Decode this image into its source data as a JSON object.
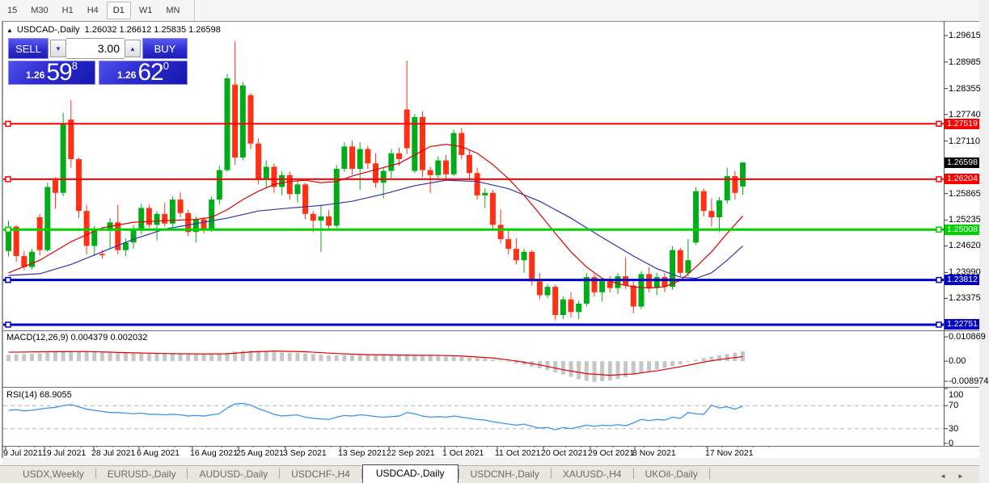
{
  "toolbar": {
    "timeframes": [
      {
        "label": "15",
        "active": false
      },
      {
        "label": "M30",
        "active": false
      },
      {
        "label": "H1",
        "active": false
      },
      {
        "label": "H4",
        "active": false
      },
      {
        "label": "D1",
        "active": true
      },
      {
        "label": "W1",
        "active": false
      },
      {
        "label": "MN",
        "active": false
      }
    ]
  },
  "window": {
    "title_symbol": "USDCAD-,Daily",
    "title_ohlc": "1.26032 1.26612 1.25835 1.26598",
    "collapse_icon": "▲"
  },
  "trade_panel": {
    "sell_label": "SELL",
    "buy_label": "BUY",
    "volume": "3.00",
    "down_icon": "▼",
    "up_icon": "▲",
    "sell_price_prefix": "1.26",
    "sell_price_big": "59",
    "sell_price_sup": "8",
    "buy_price_prefix": "1.26",
    "buy_price_big": "62",
    "buy_price_sup": "0"
  },
  "chart_data": {
    "type": "candlestick",
    "symbol": "USDCAD",
    "timeframe": "Daily",
    "ohlc_current": {
      "open": 1.26032,
      "high": 1.26612,
      "low": 1.25835,
      "close": 1.26598
    },
    "current_price_label": "1.26598",
    "price_range": {
      "top": 1.29883,
      "bottom": 1.22635
    },
    "y_ticks": [
      "1.29615",
      "1.28985",
      "1.28355",
      "1.27740",
      "1.27110",
      "1.25865",
      "1.25235",
      "1.24620",
      "1.23990",
      "1.23375"
    ],
    "x_labels": [
      {
        "label": "9 Jul 2021",
        "x": 4
      },
      {
        "label": "19 Jul 2021",
        "x": 52
      },
      {
        "label": "28 Jul 2021",
        "x": 113
      },
      {
        "label": "6 Aug 2021",
        "x": 169
      },
      {
        "label": "16 Aug 2021",
        "x": 235
      },
      {
        "label": "25 Aug 2021",
        "x": 292
      },
      {
        "label": "3 Sep 2021",
        "x": 350
      },
      {
        "label": "13 Sep 2021",
        "x": 418
      },
      {
        "label": "22 Sep 2021",
        "x": 478
      },
      {
        "label": "1 Oct 2021",
        "x": 547
      },
      {
        "label": "11 Oct 2021",
        "x": 612
      },
      {
        "label": "20 Oct 2021",
        "x": 669
      },
      {
        "label": "29 Oct 2021",
        "x": 727
      },
      {
        "label": "8 Nov 2021",
        "x": 782
      },
      {
        "label": "17 Nov 2021",
        "x": 872
      }
    ],
    "colors": {
      "bull": "#00ad19",
      "bear": "#ff3014",
      "ma_fast": "#dd0000",
      "ma_slow": "#3333aa",
      "hist": "#c6c6c6",
      "rsi": "#3a96ee"
    },
    "hlines": [
      {
        "price": 1.27519,
        "label": "1.27519",
        "color": "#fe0000",
        "width": 2
      },
      {
        "price": 1.26204,
        "label": "1.26204",
        "color": "#fe0000",
        "width": 2
      },
      {
        "price": 1.25008,
        "label": "1.25008",
        "color": "#00d200",
        "width": 3
      },
      {
        "price": 1.23812,
        "label": "1.23812",
        "color": "#0000c8",
        "width": 3
      },
      {
        "price": 1.22751,
        "label": "1.22751",
        "color": "#0000c8",
        "width": 3
      }
    ],
    "candles": [
      [
        1.245,
        1.2522,
        1.2437,
        1.2508
      ],
      [
        1.2508,
        1.2512,
        1.2425,
        1.2438
      ],
      [
        1.2438,
        1.245,
        1.2404,
        1.2412
      ],
      [
        1.2412,
        1.2455,
        1.2406,
        1.2448
      ],
      [
        1.253,
        1.2538,
        1.244,
        1.2452
      ],
      [
        1.2452,
        1.2612,
        1.2448,
        1.2602
      ],
      [
        1.2618,
        1.2625,
        1.255,
        1.2588
      ],
      [
        1.2588,
        1.2778,
        1.258,
        1.2752
      ],
      [
        1.2762,
        1.2808,
        1.2648,
        1.2668
      ],
      [
        1.2668,
        1.2672,
        1.2528,
        1.2545
      ],
      [
        1.2545,
        1.256,
        1.2442,
        1.2462
      ],
      [
        1.2462,
        1.251,
        1.2438,
        1.2498
      ],
      [
        1.2443,
        1.2452,
        1.2432,
        1.244
      ],
      [
        1.2498,
        1.2528,
        1.2455,
        1.2518
      ],
      [
        1.2518,
        1.256,
        1.2442,
        1.2452
      ],
      [
        1.2452,
        1.248,
        1.2438,
        1.247
      ],
      [
        1.247,
        1.2512,
        1.2455,
        1.2502
      ],
      [
        1.2502,
        1.2562,
        1.249,
        1.2552
      ],
      [
        1.2552,
        1.256,
        1.2505,
        1.2512
      ],
      [
        1.2512,
        1.2545,
        1.2475,
        1.2538
      ],
      [
        1.2538,
        1.2565,
        1.2508,
        1.2515
      ],
      [
        1.2515,
        1.258,
        1.2508,
        1.2572
      ],
      [
        1.2572,
        1.259,
        1.253,
        1.254
      ],
      [
        1.254,
        1.2548,
        1.2485,
        1.2495
      ],
      [
        1.2495,
        1.2532,
        1.247,
        1.2525
      ],
      [
        1.2525,
        1.253,
        1.2492,
        1.2502
      ],
      [
        1.2502,
        1.258,
        1.2495,
        1.2572
      ],
      [
        1.2572,
        1.2652,
        1.256,
        1.2642
      ],
      [
        1.2642,
        1.287,
        1.2638,
        1.286
      ],
      [
        1.2845,
        1.2948,
        1.2655,
        1.2672
      ],
      [
        1.2672,
        1.2852,
        1.2665,
        1.2843
      ],
      [
        1.282,
        1.2825,
        1.2692,
        1.2705
      ],
      [
        1.2705,
        1.2718,
        1.2608,
        1.262
      ],
      [
        1.262,
        1.2665,
        1.2598,
        1.265
      ],
      [
        1.265,
        1.2658,
        1.2588,
        1.2602
      ],
      [
        1.2602,
        1.264,
        1.2582,
        1.263
      ],
      [
        1.263,
        1.2638,
        1.2572,
        1.2585
      ],
      [
        1.2585,
        1.2618,
        1.2565,
        1.2608
      ],
      [
        1.2608,
        1.2612,
        1.2525,
        1.2538
      ],
      [
        1.2538,
        1.2545,
        1.2495,
        1.2522
      ],
      [
        1.2522,
        1.256,
        1.2448,
        1.2532
      ],
      [
        1.2532,
        1.2548,
        1.2498,
        1.251
      ],
      [
        1.251,
        1.2655,
        1.2505,
        1.2645
      ],
      [
        1.2645,
        1.2708,
        1.2638,
        1.2698
      ],
      [
        1.2698,
        1.2712,
        1.2632,
        1.2645
      ],
      [
        1.2645,
        1.2708,
        1.2595,
        1.2692
      ],
      [
        1.2692,
        1.27,
        1.2645,
        1.2658
      ],
      [
        1.2658,
        1.2682,
        1.26,
        1.2612
      ],
      [
        1.2612,
        1.2648,
        1.2575,
        1.264
      ],
      [
        1.264,
        1.2692,
        1.2622,
        1.2682
      ],
      [
        1.2682,
        1.2695,
        1.2652,
        1.2668
      ],
      [
        1.2786,
        1.2902,
        1.268,
        1.2694
      ],
      [
        1.264,
        1.2775,
        1.2635,
        1.2768
      ],
      [
        1.2768,
        1.2782,
        1.2625,
        1.2642
      ],
      [
        1.2642,
        1.265,
        1.2588,
        1.263
      ],
      [
        1.263,
        1.2675,
        1.2618,
        1.2665
      ],
      [
        1.2665,
        1.2678,
        1.2622,
        1.2632
      ],
      [
        1.2632,
        1.2738,
        1.2628,
        1.273
      ],
      [
        1.273,
        1.2742,
        1.2668,
        1.2678
      ],
      [
        1.2678,
        1.2688,
        1.2622,
        1.2635
      ],
      [
        1.2635,
        1.2648,
        1.2572,
        1.2582
      ],
      [
        1.2582,
        1.2598,
        1.2552,
        1.2588
      ],
      [
        1.2588,
        1.2595,
        1.25,
        1.2512
      ],
      [
        1.2512,
        1.2548,
        1.2468,
        1.2478
      ],
      [
        1.2478,
        1.2498,
        1.2442,
        1.2455
      ],
      [
        1.2455,
        1.248,
        1.2418,
        1.2428
      ],
      [
        1.2428,
        1.2455,
        1.2398,
        1.2448
      ],
      [
        1.2448,
        1.2452,
        1.2368,
        1.2378
      ],
      [
        1.2378,
        1.2398,
        1.2335,
        1.2345
      ],
      [
        1.2345,
        1.2372,
        1.2338,
        1.2365
      ],
      [
        1.2365,
        1.237,
        1.2285,
        1.2298
      ],
      [
        1.2298,
        1.2342,
        1.2288,
        1.2335
      ],
      [
        1.2335,
        1.2352,
        1.2292,
        1.2305
      ],
      [
        1.2305,
        1.2332,
        1.2288,
        1.2325
      ],
      [
        1.2325,
        1.2398,
        1.2318,
        1.2388
      ],
      [
        1.2388,
        1.2395,
        1.2342,
        1.2352
      ],
      [
        1.2352,
        1.2385,
        1.233,
        1.2378
      ],
      [
        1.2378,
        1.239,
        1.2352,
        1.2362
      ],
      [
        1.2362,
        1.2398,
        1.2348,
        1.239
      ],
      [
        1.239,
        1.2435,
        1.236,
        1.2368
      ],
      [
        1.2368,
        1.2378,
        1.2302,
        1.2318
      ],
      [
        1.2318,
        1.2402,
        1.2312,
        1.2395
      ],
      [
        1.2395,
        1.2412,
        1.2352,
        1.2362
      ],
      [
        1.2362,
        1.2398,
        1.2345,
        1.2388
      ],
      [
        1.2388,
        1.2398,
        1.2352,
        1.2365
      ],
      [
        1.2365,
        1.2462,
        1.2358,
        1.2452
      ],
      [
        1.2452,
        1.2458,
        1.2388,
        1.2398
      ],
      [
        1.2398,
        1.2478,
        1.239,
        1.2428
      ],
      [
        1.247,
        1.2602,
        1.2465,
        1.2592
      ],
      [
        1.2592,
        1.2598,
        1.2532,
        1.2545
      ],
      [
        1.2545,
        1.2575,
        1.2508,
        1.253
      ],
      [
        1.253,
        1.2578,
        1.2495,
        1.257
      ],
      [
        1.257,
        1.2648,
        1.2562,
        1.2628
      ],
      [
        1.2628,
        1.264,
        1.2572,
        1.2588
      ],
      [
        1.26032,
        1.26612,
        1.25835,
        1.26598
      ]
    ],
    "ma_fast": [
      [
        0,
        1.2398
      ],
      [
        4,
        1.2428
      ],
      [
        8,
        1.2472
      ],
      [
        12,
        1.2505
      ],
      [
        16,
        1.2518
      ],
      [
        20,
        1.2522
      ],
      [
        24,
        1.2525
      ],
      [
        26,
        1.253
      ],
      [
        28,
        1.2548
      ],
      [
        30,
        1.2572
      ],
      [
        32,
        1.2592
      ],
      [
        34,
        1.2608
      ],
      [
        36,
        1.2615
      ],
      [
        38,
        1.2618
      ],
      [
        40,
        1.2612
      ],
      [
        42,
        1.2615
      ],
      [
        44,
        1.2628
      ],
      [
        46,
        1.2638
      ],
      [
        48,
        1.2648
      ],
      [
        50,
        1.2658
      ],
      [
        52,
        1.2678
      ],
      [
        54,
        1.2698
      ],
      [
        56,
        1.2703
      ],
      [
        58,
        1.2698
      ],
      [
        60,
        1.2682
      ],
      [
        62,
        1.2655
      ],
      [
        64,
        1.2622
      ],
      [
        66,
        1.2582
      ],
      [
        68,
        1.2538
      ],
      [
        70,
        1.2492
      ],
      [
        72,
        1.2448
      ],
      [
        74,
        1.2412
      ],
      [
        76,
        1.2385
      ],
      [
        78,
        1.2372
      ],
      [
        80,
        1.2365
      ],
      [
        82,
        1.2362
      ],
      [
        84,
        1.2365
      ],
      [
        86,
        1.238
      ],
      [
        88,
        1.2412
      ],
      [
        90,
        1.2448
      ],
      [
        92,
        1.2492
      ],
      [
        94,
        1.2533
      ]
    ],
    "ma_slow": [
      [
        0,
        1.2392
      ],
      [
        4,
        1.2396
      ],
      [
        8,
        1.2418
      ],
      [
        12,
        1.2448
      ],
      [
        16,
        1.2478
      ],
      [
        20,
        1.2502
      ],
      [
        24,
        1.2515
      ],
      [
        28,
        1.2528
      ],
      [
        32,
        1.2545
      ],
      [
        36,
        1.2552
      ],
      [
        40,
        1.2558
      ],
      [
        44,
        1.2568
      ],
      [
        48,
        1.2585
      ],
      [
        52,
        1.2605
      ],
      [
        56,
        1.2618
      ],
      [
        60,
        1.2615
      ],
      [
        64,
        1.2598
      ],
      [
        68,
        1.2568
      ],
      [
        72,
        1.2528
      ],
      [
        76,
        1.2482
      ],
      [
        80,
        1.2438
      ],
      [
        83,
        1.2408
      ],
      [
        86,
        1.2388
      ],
      [
        88,
        1.2385
      ],
      [
        90,
        1.2398
      ],
      [
        92,
        1.2428
      ],
      [
        94,
        1.2462
      ]
    ],
    "macd": {
      "label": "MACD(12,26,9)",
      "value_main": "0.004379",
      "value_signal": "0.002032",
      "ylim": [
        0.010869,
        -0.008974
      ],
      "axis_labels": [
        "0.010869",
        "0.00",
        "-0.008974"
      ],
      "histogram": [
        0.0028,
        0.003,
        0.0031,
        0.0033,
        0.0035,
        0.0038,
        0.004,
        0.0043,
        0.0045,
        0.0044,
        0.0042,
        0.004,
        0.0038,
        0.0037,
        0.0036,
        0.0035,
        0.0034,
        0.0034,
        0.0033,
        0.0033,
        0.0032,
        0.0033,
        0.0033,
        0.0032,
        0.0031,
        0.003,
        0.0031,
        0.0033,
        0.0038,
        0.0043,
        0.0046,
        0.0047,
        0.0045,
        0.0043,
        0.0041,
        0.0039,
        0.0037,
        0.0036,
        0.0034,
        0.0031,
        0.0028,
        0.0026,
        0.0026,
        0.0027,
        0.0027,
        0.0028,
        0.0028,
        0.0027,
        0.0026,
        0.0025,
        0.0025,
        0.0027,
        0.0028,
        0.0027,
        0.0025,
        0.0023,
        0.0021,
        0.002,
        0.0019,
        0.0017,
        0.0014,
        0.0011,
        0.0007,
        0.0002,
        -0.0004,
        -0.001,
        -0.0016,
        -0.0024,
        -0.0032,
        -0.004,
        -0.005,
        -0.006,
        -0.007,
        -0.008,
        -0.0088,
        -0.0092,
        -0.009,
        -0.0086,
        -0.008,
        -0.0072,
        -0.0063,
        -0.0054,
        -0.0045,
        -0.0037,
        -0.003,
        -0.0022,
        -0.0014,
        -0.0004,
        0.0006,
        0.0014,
        0.002,
        0.0026,
        0.0032,
        0.0038,
        0.0044
      ],
      "signal": [
        [
          0,
          0.004
        ],
        [
          5,
          0.0042
        ],
        [
          10,
          0.0043
        ],
        [
          15,
          0.0038
        ],
        [
          20,
          0.0034
        ],
        [
          25,
          0.0032
        ],
        [
          28,
          0.0033
        ],
        [
          31,
          0.0041
        ],
        [
          34,
          0.0045
        ],
        [
          38,
          0.0042
        ],
        [
          42,
          0.0034
        ],
        [
          46,
          0.0029
        ],
        [
          50,
          0.0027
        ],
        [
          55,
          0.0026
        ],
        [
          58,
          0.0023
        ],
        [
          62,
          0.0014
        ],
        [
          65,
          0.0001
        ],
        [
          68,
          -0.0017
        ],
        [
          71,
          -0.0038
        ],
        [
          74,
          -0.0056
        ],
        [
          77,
          -0.0063
        ],
        [
          80,
          -0.0057
        ],
        [
          83,
          -0.0043
        ],
        [
          86,
          -0.0025
        ],
        [
          89,
          -0.0004
        ],
        [
          91,
          0.0007
        ],
        [
          93,
          0.0016
        ],
        [
          94,
          0.002
        ]
      ]
    },
    "rsi": {
      "label": "RSI(14)",
      "value": "68.9055",
      "ylim": [
        100,
        0
      ],
      "levels": [
        70,
        30
      ],
      "axis_labels": [
        "100",
        "70",
        "30",
        "0"
      ],
      "values": [
        62,
        63,
        61,
        62,
        64,
        66,
        67,
        70,
        72,
        68,
        64,
        62,
        60,
        58,
        58,
        57,
        56,
        57,
        55,
        55,
        54,
        55,
        54,
        52,
        53,
        52,
        54,
        56,
        66,
        73,
        74,
        71,
        65,
        60,
        55,
        52,
        53,
        54,
        50,
        48,
        47,
        46,
        50,
        53,
        52,
        54,
        53,
        51,
        50,
        51,
        52,
        58,
        56,
        52,
        50,
        51,
        50,
        52,
        50,
        48,
        46,
        45,
        42,
        40,
        38,
        36,
        38,
        34,
        31,
        32,
        28,
        32,
        30,
        33,
        36,
        34,
        36,
        35,
        37,
        35,
        40,
        46,
        44,
        46,
        45,
        50,
        48,
        58,
        56,
        55,
        71,
        66,
        68,
        64,
        69
      ]
    }
  },
  "scrollbar": {
    "left_icon": "◄",
    "right_icon": "►"
  },
  "tabs": [
    {
      "label": "USDX,Weekly",
      "active": false
    },
    {
      "label": "EURUSD-,Daily",
      "active": false
    },
    {
      "label": "AUDUSD-,Daily",
      "active": false
    },
    {
      "label": "USDCHF-,H4",
      "active": false
    },
    {
      "label": "USDCAD-,Daily",
      "active": true
    },
    {
      "label": "USDCNH-,Daily",
      "active": false
    },
    {
      "label": "XAUUSD-,H4",
      "active": false
    },
    {
      "label": "UKOil-,Daily",
      "active": false
    }
  ]
}
